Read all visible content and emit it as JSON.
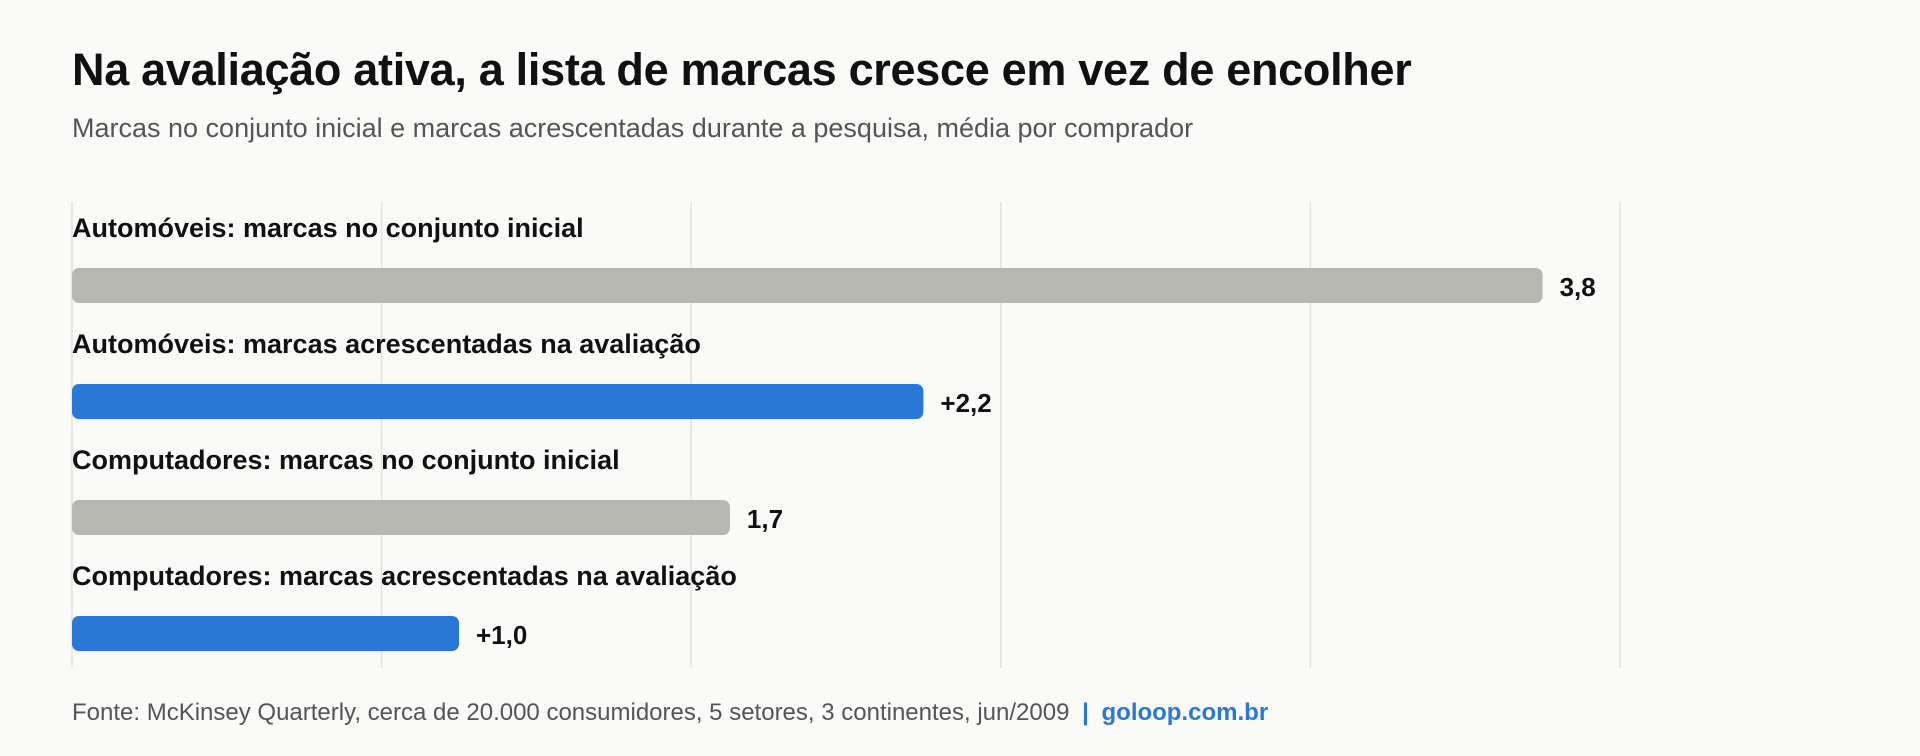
{
  "title": "Na avaliação ativa, a lista de marcas cresce em vez de encolher",
  "subtitle": "Marcas no conjunto inicial e marcas acrescentadas durante a pesquisa, média por comprador",
  "footer": {
    "source": "Fonte: McKinsey Quarterly, cerca de 20.000 consumidores, 5 setores, 3 continentes, jun/2009",
    "separator": "|",
    "site": "goloop.com.br"
  },
  "colors": {
    "initial": "#b8b8b2",
    "added": "#2a78d6",
    "grid": "#e2e2df",
    "text": "#111111",
    "muted": "#555555"
  },
  "chart_data": {
    "type": "bar",
    "orientation": "horizontal",
    "xlim": [
      0,
      4
    ],
    "grid": true,
    "axis_labels": false,
    "categories": [
      "Automóveis: marcas no conjunto inicial",
      "Automóveis: marcas acrescentadas na avaliação",
      "Computadores: marcas no conjunto inicial",
      "Computadores: marcas acrescentadas na avaliação"
    ],
    "values": [
      3.8,
      2.2,
      1.7,
      1.0
    ],
    "value_labels": [
      "3,8",
      "+2,2",
      "1,7",
      "+1,0"
    ],
    "kinds": [
      "initial",
      "added",
      "initial",
      "added"
    ]
  }
}
